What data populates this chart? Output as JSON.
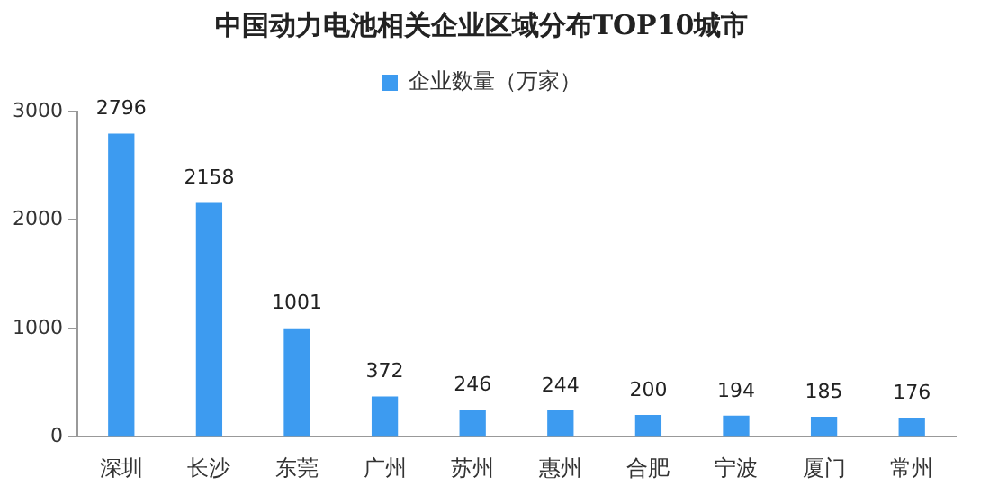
{
  "chart_data": {
    "type": "bar",
    "title": "中国动力电池相关企业区域分布TOP10城市",
    "categories": [
      "深圳",
      "长沙",
      "东莞",
      "广州",
      "苏州",
      "惠州",
      "合肥",
      "宁波",
      "厦门",
      "常州"
    ],
    "series": [
      {
        "name": "企业数量（万家）",
        "color": "#3d9bf0",
        "values": [
          2796,
          2158,
          1001,
          372,
          246,
          244,
          200,
          194,
          185,
          176
        ]
      }
    ],
    "ylim": [
      0,
      3000
    ],
    "yticks": [
      0,
      1000,
      2000,
      3000
    ],
    "grid": false,
    "legend": "top",
    "data_labels": true
  }
}
